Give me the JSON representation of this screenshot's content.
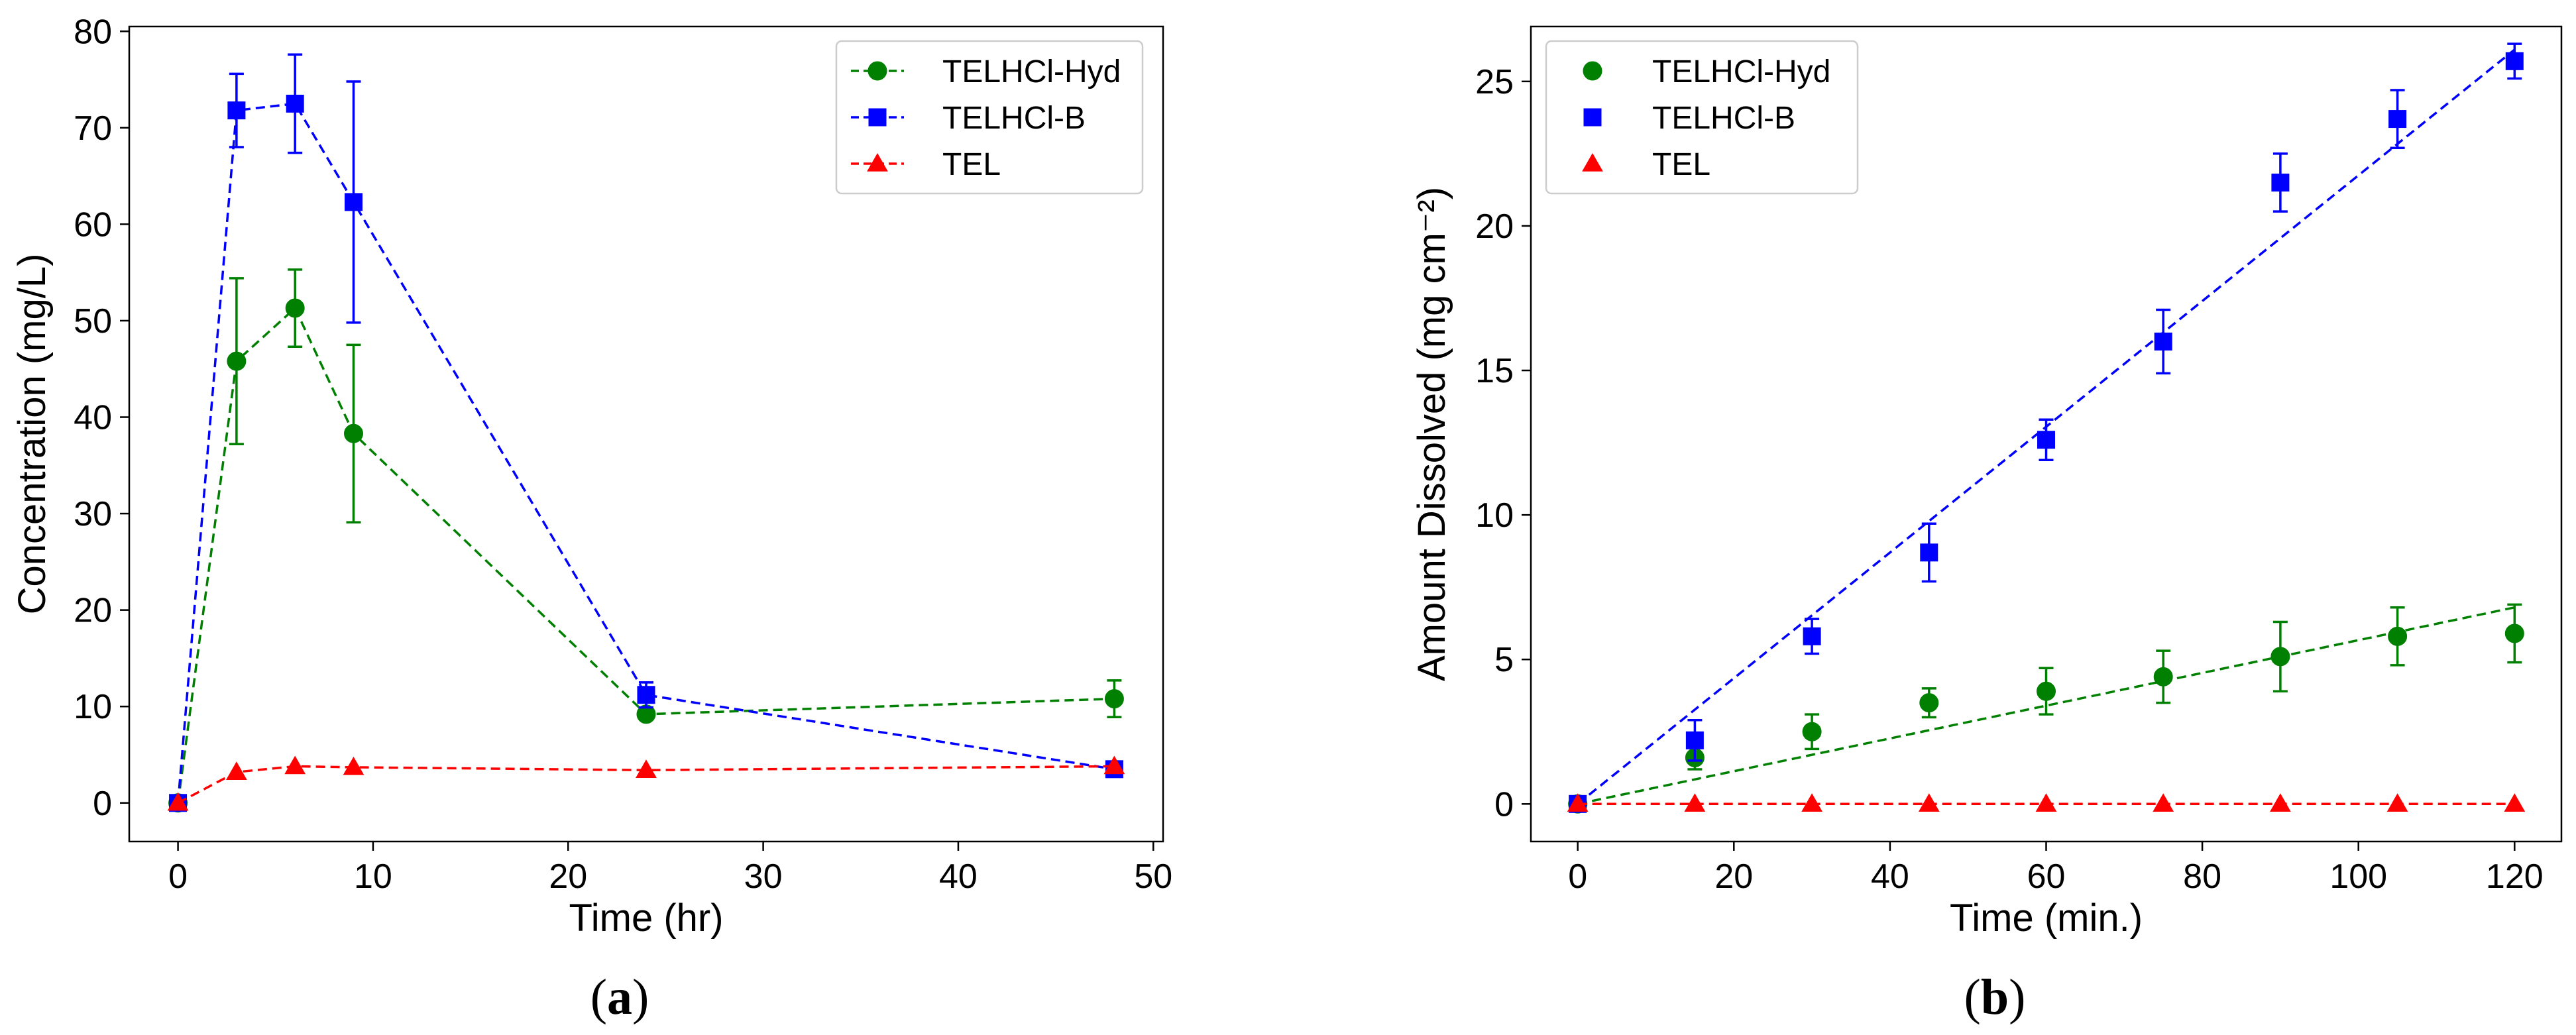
{
  "colors": {
    "TELHCl-Hyd": "#008000",
    "TELHCl-B": "#0000ff",
    "TEL": "#ff0000"
  },
  "chart_data": [
    {
      "panel": "a",
      "panel_label": "(a)",
      "panel_letter": "a",
      "type": "line",
      "title": "",
      "xlabel": "Time (hr)",
      "ylabel": "Concentration (mg/L)",
      "xlim": [
        -2.5,
        50.5
      ],
      "ylim": [
        -4,
        80.5
      ],
      "xticks": [
        0,
        10,
        20,
        30,
        40,
        50
      ],
      "yticks": [
        0,
        10,
        20,
        30,
        40,
        50,
        60,
        70,
        80
      ],
      "grid": false,
      "legend_position": "top-right",
      "legend_style": "line-marker",
      "series": [
        {
          "name": "TELHCl-Hyd",
          "marker": "circle",
          "x": [
            0,
            3,
            6,
            9,
            24,
            48
          ],
          "y": [
            0,
            45.8,
            51.3,
            38.3,
            9.2,
            10.8
          ],
          "err": [
            0,
            8.6,
            4.0,
            9.2,
            0.4,
            1.9
          ],
          "line": "dashed-connect"
        },
        {
          "name": "TELHCl-B",
          "marker": "square",
          "x": [
            0,
            3,
            6,
            9,
            24,
            48
          ],
          "y": [
            0,
            71.8,
            72.5,
            62.3,
            11.2,
            3.5
          ],
          "err": [
            0,
            3.8,
            5.1,
            12.5,
            1.3,
            0.2
          ],
          "line": "dashed-connect"
        },
        {
          "name": "TEL",
          "marker": "triangle",
          "x": [
            0,
            3,
            6,
            9,
            24,
            48
          ],
          "y": [
            0,
            3.2,
            3.8,
            3.7,
            3.4,
            3.8
          ],
          "err": [
            0,
            0,
            0,
            0,
            0,
            0
          ],
          "line": "dashed-connect"
        }
      ]
    },
    {
      "panel": "b",
      "panel_label": "(b)",
      "panel_letter": "b",
      "type": "scatter",
      "title": "",
      "xlabel": "Time (min.)",
      "ylabel": "Amount Dissolved (mg cm⁻²)",
      "xlim": [
        -6,
        126
      ],
      "ylim": [
        -1.3,
        26.9
      ],
      "xticks": [
        0,
        20,
        40,
        60,
        80,
        100,
        120
      ],
      "yticks": [
        0,
        5,
        10,
        15,
        20,
        25
      ],
      "grid": false,
      "legend_position": "top-left",
      "legend_style": "marker-only",
      "series": [
        {
          "name": "TELHCl-Hyd",
          "marker": "circle",
          "x": [
            0,
            15,
            30,
            45,
            60,
            75,
            90,
            105,
            120
          ],
          "y": [
            0,
            1.6,
            2.5,
            3.5,
            3.9,
            4.4,
            5.1,
            5.8,
            5.9
          ],
          "err": [
            0,
            0.4,
            0.6,
            0.5,
            0.8,
            0.9,
            1.2,
            1.0,
            1.0
          ],
          "fit": [
            [
              0,
              0
            ],
            [
              120,
              6.8
            ]
          ]
        },
        {
          "name": "TELHCl-B",
          "marker": "square",
          "x": [
            0,
            15,
            30,
            45,
            60,
            75,
            90,
            105,
            120
          ],
          "y": [
            0,
            2.2,
            5.8,
            8.7,
            12.6,
            16.0,
            21.5,
            23.7,
            25.7
          ],
          "err": [
            0,
            0.7,
            0.6,
            1.0,
            0.7,
            1.1,
            1.0,
            1.0,
            0.6
          ],
          "fit": [
            [
              0,
              0
            ],
            [
              120,
              26.1
            ]
          ]
        },
        {
          "name": "TEL",
          "marker": "triangle",
          "x": [
            0,
            15,
            30,
            45,
            60,
            75,
            90,
            105,
            120
          ],
          "y": [
            0,
            0,
            0,
            0,
            0,
            0,
            0,
            0,
            0
          ],
          "err": [
            0,
            0,
            0,
            0,
            0,
            0,
            0,
            0,
            0
          ],
          "fit": [
            [
              0,
              0
            ],
            [
              120,
              0
            ]
          ]
        }
      ]
    }
  ]
}
